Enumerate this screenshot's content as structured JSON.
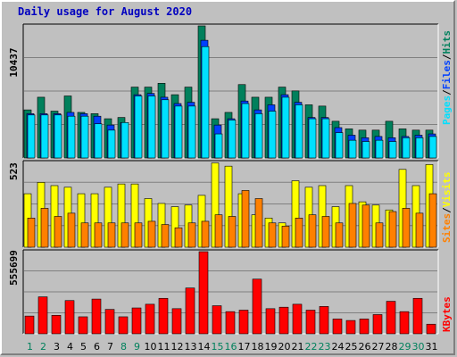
{
  "title": "Daily usage for August 2020",
  "colors": {
    "background": "#c0c0c0",
    "hits": "#00805c",
    "files": "#0040ff",
    "pages": "#00e0ff",
    "visits": "#ffff00",
    "sites": "#ff8000",
    "kbytes": "#ff0000",
    "weekend_day": "#00805c",
    "weekday": "#000000"
  },
  "chart_data": [
    {
      "type": "bar",
      "panel": "top",
      "max_label": "10437",
      "ylim": [
        0,
        10437
      ],
      "legend": [
        "Pages",
        "/",
        "Files",
        "/",
        "Hits"
      ],
      "x": [
        1,
        2,
        3,
        4,
        5,
        6,
        7,
        8,
        9,
        10,
        11,
        12,
        13,
        14,
        15,
        16,
        17,
        18,
        19,
        20,
        21,
        22,
        23,
        24,
        25,
        26,
        27,
        28,
        29,
        30,
        31
      ],
      "series": [
        {
          "name": "Hits",
          "values": [
            3800,
            4800,
            3700,
            4900,
            3600,
            3500,
            3100,
            3200,
            5600,
            5600,
            5900,
            5000,
            5600,
            10437,
            3100,
            3600,
            5800,
            4800,
            4800,
            5600,
            5300,
            4200,
            4100,
            2900,
            2300,
            2200,
            2200,
            2900,
            2300,
            2200,
            2200
          ]
        },
        {
          "name": "Files",
          "values": [
            3500,
            3500,
            3500,
            3600,
            3500,
            3300,
            2600,
            2800,
            5000,
            5100,
            4800,
            4300,
            4400,
            9300,
            2600,
            3100,
            4500,
            3800,
            4200,
            5000,
            4400,
            3200,
            3200,
            2400,
            1800,
            1600,
            1700,
            1600,
            1700,
            1800,
            1900
          ]
        },
        {
          "name": "Pages",
          "values": [
            3400,
            3400,
            3400,
            3300,
            3300,
            2700,
            2200,
            2800,
            4900,
            4900,
            4600,
            4100,
            4100,
            8800,
            1900,
            3000,
            4300,
            3500,
            3700,
            4800,
            4200,
            3100,
            3100,
            2000,
            1400,
            1300,
            1400,
            1300,
            1600,
            1600,
            1700
          ]
        }
      ]
    },
    {
      "type": "bar",
      "panel": "middle",
      "max_label": "523",
      "ylim": [
        0,
        523
      ],
      "legend": [
        "Sites",
        "/",
        "Visits"
      ],
      "x": [
        1,
        2,
        3,
        4,
        5,
        6,
        7,
        8,
        9,
        10,
        11,
        12,
        13,
        14,
        15,
        16,
        17,
        18,
        19,
        20,
        21,
        22,
        23,
        24,
        25,
        26,
        27,
        28,
        29,
        30,
        31
      ],
      "series": [
        {
          "name": "Visits",
          "values": [
            330,
            400,
            380,
            370,
            330,
            330,
            370,
            390,
            390,
            300,
            270,
            250,
            260,
            320,
            520,
            500,
            330,
            200,
            180,
            150,
            410,
            370,
            380,
            250,
            380,
            280,
            260,
            230,
            480,
            380,
            510
          ]
        },
        {
          "name": "Sites",
          "values": [
            180,
            240,
            190,
            210,
            150,
            150,
            150,
            150,
            150,
            160,
            140,
            120,
            150,
            160,
            200,
            190,
            350,
            300,
            150,
            130,
            180,
            200,
            190,
            150,
            270,
            260,
            150,
            220,
            240,
            210,
            330
          ]
        }
      ]
    },
    {
      "type": "bar",
      "panel": "bottom",
      "max_label": "555699",
      "ylim": [
        0,
        555699
      ],
      "legend": [
        "KBytes"
      ],
      "x": [
        1,
        2,
        3,
        4,
        5,
        6,
        7,
        8,
        9,
        10,
        11,
        12,
        13,
        14,
        15,
        16,
        17,
        18,
        19,
        20,
        21,
        22,
        23,
        24,
        25,
        26,
        27,
        28,
        29,
        30,
        31
      ],
      "series": [
        {
          "name": "KBytes",
          "values": [
            120000,
            250000,
            125000,
            225000,
            115000,
            235000,
            165000,
            115000,
            175000,
            200000,
            240000,
            170000,
            310000,
            555699,
            190000,
            150000,
            160000,
            370000,
            170000,
            180000,
            200000,
            160000,
            185000,
            100000,
            90000,
            100000,
            130000,
            220000,
            150000,
            240000,
            65000
          ]
        }
      ]
    }
  ]
}
